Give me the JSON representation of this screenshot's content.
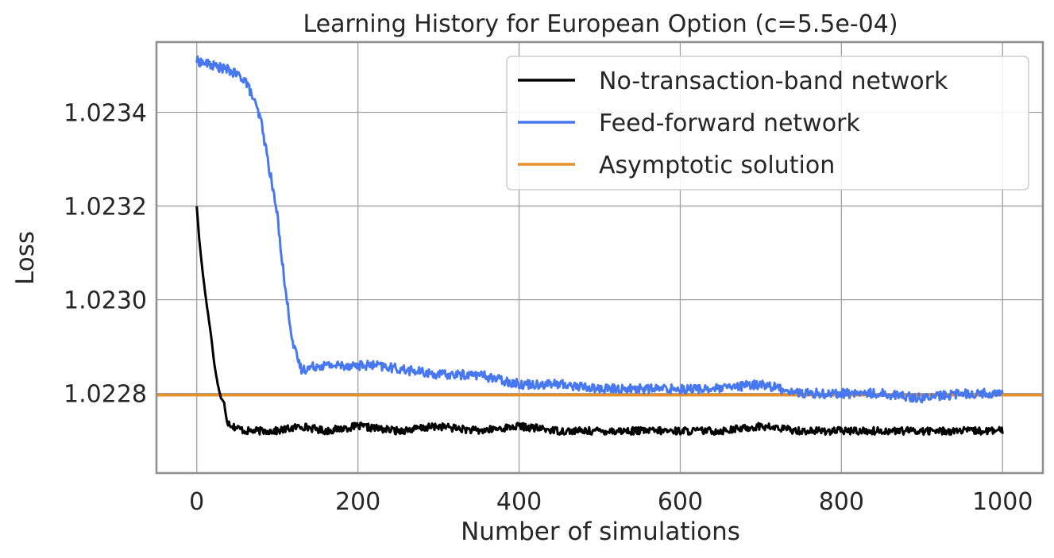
{
  "chart_data": {
    "type": "line",
    "title": "Learning History for European Option (c=5.5e-04)",
    "xlabel": "Number of simulations",
    "ylabel": "Loss",
    "xlim": [
      -50,
      1050
    ],
    "ylim": [
      1.02263,
      1.02355
    ],
    "xticks": [
      0,
      200,
      400,
      600,
      800,
      1000
    ],
    "xtick_labels": [
      "0",
      "200",
      "400",
      "600",
      "800",
      "1000"
    ],
    "yticks": [
      1.0228,
      1.023,
      1.0232,
      1.0234
    ],
    "ytick_labels": [
      "1.0228",
      "1.0230",
      "1.0232",
      "1.0234"
    ],
    "grid": true,
    "legend_position": "top-right",
    "series": [
      {
        "name": "No-transaction-band network",
        "color": "#000000",
        "x": [
          0,
          3,
          6,
          10,
          14,
          18,
          22,
          26,
          30,
          34,
          38,
          45,
          60,
          80,
          100,
          130,
          160,
          200,
          250,
          300,
          350,
          400,
          450,
          500,
          550,
          600,
          650,
          700,
          750,
          800,
          850,
          900,
          950,
          1000
        ],
        "values": [
          1.0232,
          1.02313,
          1.02308,
          1.02302,
          1.02297,
          1.02292,
          1.02286,
          1.02282,
          1.02279,
          1.02278,
          1.02274,
          1.02273,
          1.02272,
          1.02272,
          1.02272,
          1.02273,
          1.02272,
          1.02273,
          1.02272,
          1.02273,
          1.02272,
          1.02273,
          1.02272,
          1.02272,
          1.02272,
          1.02272,
          1.02272,
          1.02273,
          1.02272,
          1.02272,
          1.02272,
          1.02272,
          1.02272,
          1.02272
        ]
      },
      {
        "name": "Feed-forward network",
        "color": "#4878f0",
        "x": [
          0,
          20,
          40,
          60,
          70,
          80,
          90,
          100,
          110,
          120,
          130,
          150,
          180,
          220,
          260,
          300,
          350,
          400,
          450,
          500,
          550,
          600,
          650,
          700,
          750,
          800,
          850,
          900,
          950,
          1000
        ],
        "values": [
          1.02351,
          1.0235,
          1.02349,
          1.02347,
          1.02343,
          1.02338,
          1.02328,
          1.02318,
          1.02302,
          1.0229,
          1.02285,
          1.02286,
          1.02286,
          1.02286,
          1.02285,
          1.02284,
          1.02284,
          1.02282,
          1.02282,
          1.02281,
          1.02281,
          1.02281,
          1.02281,
          1.02282,
          1.0228,
          1.0228,
          1.0228,
          1.02279,
          1.0228,
          1.0228
        ]
      },
      {
        "name": "Asymptotic solution",
        "color": "#e8902a",
        "x": [
          -50,
          1050
        ],
        "values": [
          1.0227965,
          1.0227965
        ]
      }
    ]
  }
}
